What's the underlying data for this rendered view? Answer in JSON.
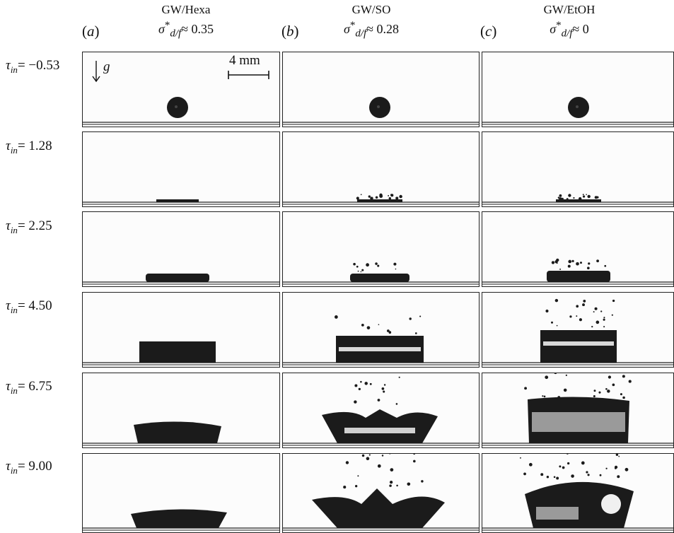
{
  "columns": [
    {
      "letter": "a",
      "fluid_pair": "GW/Hexa",
      "sigma_symbol": "σ",
      "sigma_sup": "*",
      "sigma_sub": "d/f",
      "sigma_value": "≈ 0.35"
    },
    {
      "letter": "b",
      "fluid_pair": "GW/SO",
      "sigma_symbol": "σ",
      "sigma_sup": "*",
      "sigma_sub": "d/f",
      "sigma_value": "≈ 0.28"
    },
    {
      "letter": "c",
      "fluid_pair": "GW/EtOH",
      "sigma_symbol": "σ",
      "sigma_sup": "*",
      "sigma_sub": "d/f",
      "sigma_value": "≈ 0"
    }
  ],
  "rows": [
    {
      "tau_symbol": "τ",
      "tau_sub": "in",
      "value": "= −0.53"
    },
    {
      "tau_symbol": "τ",
      "tau_sub": "in",
      "value": "= 1.28"
    },
    {
      "tau_symbol": "τ",
      "tau_sub": "in",
      "value": "= 2.25"
    },
    {
      "tau_symbol": "τ",
      "tau_sub": "in",
      "value": "= 4.50"
    },
    {
      "tau_symbol": "τ",
      "tau_sub": "in",
      "value": "= 6.75"
    },
    {
      "tau_symbol": "τ",
      "tau_sub": "in",
      "value": "= 9.00"
    }
  ],
  "scale_bar": {
    "label": "4 mm"
  },
  "gravity": {
    "label": "g"
  },
  "colors": {
    "droplet": "#1b1b1b",
    "background": "#fcfcfc",
    "border": "#222222"
  }
}
